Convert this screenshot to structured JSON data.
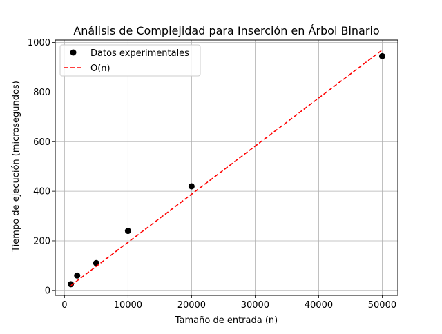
{
  "chart_data": {
    "type": "scatter",
    "title": "Análisis de Complejidad para Inserción en Árbol Binario",
    "xlabel": "Tamaño de entrada (n)",
    "ylabel": "Tiempo de ejecución (microsegundos)",
    "xlim": [
      -1450,
      52450
    ],
    "ylim": [
      -20,
      1010
    ],
    "xticks": [
      0,
      10000,
      20000,
      30000,
      40000,
      50000
    ],
    "yticks": [
      0,
      200,
      400,
      600,
      800,
      1000
    ],
    "grid": true,
    "legend_position": "top-left",
    "series": [
      {
        "name": "Datos experimentales",
        "kind": "scatter",
        "color": "#000000",
        "points": [
          [
            1000,
            25
          ],
          [
            2000,
            60
          ],
          [
            5000,
            110
          ],
          [
            10000,
            240
          ],
          [
            20000,
            420
          ],
          [
            50000,
            945
          ]
        ]
      },
      {
        "name": "O(n)",
        "kind": "line",
        "style": "dashed",
        "color": "#ff0000",
        "points": [
          [
            1000,
            19.4
          ],
          [
            50000,
            970
          ]
        ]
      }
    ]
  }
}
